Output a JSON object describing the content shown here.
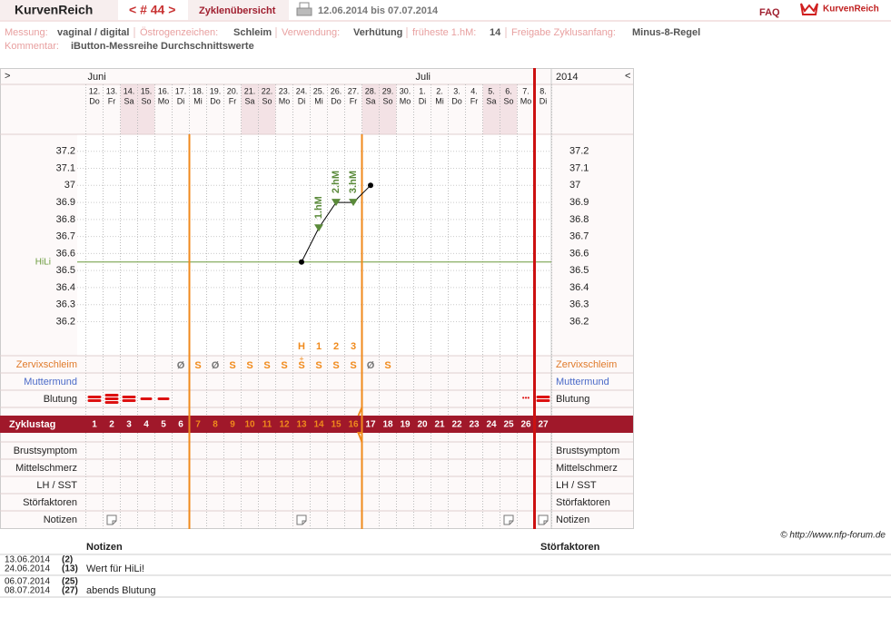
{
  "header": {
    "brand": "KurvenReich",
    "cycle_nav": "< # 44 >",
    "overview": "Zyklenübersicht",
    "date_range": "12.06.2014 bis 07.07.2014",
    "faq": "FAQ",
    "logo": "KurvenReich"
  },
  "info": {
    "items": [
      {
        "label": "Messung:",
        "value": "vaginal / digital"
      },
      {
        "label": "Östrogenzeichen:",
        "value": "Schleim"
      },
      {
        "label": "Verwendung:",
        "value": "Verhütung"
      },
      {
        "label": "früheste 1.hM:",
        "value": "14"
      },
      {
        "label": "Freigabe Zyklusanfang:",
        "value": "Minus-8-Regel"
      }
    ],
    "comment_label": "Kommentar:",
    "comment": "iButton-Messreihe Durchschnittswerte"
  },
  "chart_data": {
    "type": "line",
    "corner_left": ">",
    "corner_right": "<",
    "year": "2014",
    "months": [
      "Juni",
      null,
      null,
      null,
      null,
      null,
      null,
      null,
      null,
      null,
      null,
      null,
      null,
      null,
      null,
      null,
      null,
      null,
      null,
      "Juli",
      null,
      null,
      null,
      null,
      null,
      null,
      null
    ],
    "categories": [
      "12.",
      "13.",
      "14.",
      "15.",
      "16.",
      "17.",
      "18.",
      "19.",
      "20.",
      "21.",
      "22.",
      "23.",
      "24.",
      "25.",
      "26.",
      "27.",
      "28.",
      "29.",
      "30.",
      "1.",
      "2.",
      "3.",
      "4.",
      "5.",
      "6.",
      "7.",
      "8."
    ],
    "weekdays": [
      "Do",
      "Fr",
      "Sa",
      "So",
      "Mo",
      "Di",
      "Mi",
      "Do",
      "Fr",
      "Sa",
      "So",
      "Mo",
      "Di",
      "Mi",
      "Do",
      "Fr",
      "Sa",
      "So",
      "Mo",
      "Di",
      "Mi",
      "Do",
      "Fr",
      "Sa",
      "So",
      "Mo",
      "Di"
    ],
    "shaded": [
      false,
      false,
      true,
      true,
      false,
      false,
      false,
      false,
      false,
      true,
      true,
      false,
      false,
      false,
      false,
      false,
      true,
      true,
      false,
      false,
      false,
      false,
      false,
      true,
      true,
      false,
      false
    ],
    "ylim": [
      36.0,
      37.3
    ],
    "yticks": [
      36.2,
      36.3,
      36.4,
      36.5,
      36.6,
      36.7,
      36.8,
      36.9,
      37,
      37.1,
      37.2
    ],
    "grid": true,
    "series": [
      {
        "color": "#000000",
        "values": [
          null,
          null,
          null,
          null,
          null,
          null,
          null,
          null,
          null,
          null,
          null,
          null,
          36.55,
          36.75,
          36.9,
          36.9,
          37.0,
          null,
          null,
          null,
          null,
          null,
          null,
          null,
          null,
          null,
          null
        ]
      }
    ],
    "hm_labels": [
      null,
      null,
      null,
      null,
      null,
      null,
      null,
      null,
      null,
      null,
      null,
      null,
      null,
      "1.hM",
      "2.hM",
      "3.hM",
      null,
      null,
      null,
      null,
      null,
      null,
      null,
      null,
      null,
      null,
      null
    ],
    "hm_color": "#5a8a3a",
    "hili": {
      "label": "HiLi",
      "value": 36.55,
      "color": "#6a9a3c"
    },
    "peak_labels": [
      null,
      null,
      null,
      null,
      null,
      null,
      null,
      null,
      null,
      null,
      null,
      null,
      "H",
      "1",
      "2",
      "3",
      null,
      null,
      null,
      null,
      null,
      null,
      null,
      null,
      null,
      null,
      null
    ],
    "fertile_color": "#f08a1c",
    "cervix": {
      "label": "Zervixschleim",
      "color": "#e07a2a",
      "values": [
        null,
        null,
        null,
        null,
        null,
        "Ø",
        "S",
        "Ø",
        "S",
        "S",
        "S",
        "S",
        "S",
        "S",
        "S",
        "S",
        "Ø",
        "S",
        null,
        null,
        null,
        null,
        null,
        null,
        null,
        null,
        null
      ],
      "marks": [
        null,
        null,
        null,
        null,
        null,
        null,
        null,
        null,
        null,
        null,
        null,
        null,
        "+",
        null,
        null,
        null,
        null,
        null,
        null,
        null,
        null,
        null,
        null,
        null,
        null,
        null,
        null
      ],
      "colors": [
        null,
        null,
        null,
        null,
        null,
        "#777777",
        "#f08a1c",
        "#777777",
        "#f08a1c",
        "#f08a1c",
        "#f08a1c",
        "#f08a1c",
        "#f08a1c",
        "#f08a1c",
        "#f08a1c",
        "#f08a1c",
        "#777777",
        "#f08a1c",
        null,
        null,
        null,
        null,
        null,
        null,
        null,
        null,
        null
      ]
    },
    "cervix_os": {
      "label": "Muttermund",
      "color": "#4a6ac8"
    },
    "bleeding": {
      "label": "Blutung",
      "color": "#dd1111",
      "values": [
        2,
        3,
        2,
        1,
        1,
        null,
        null,
        null,
        null,
        null,
        null,
        null,
        null,
        null,
        null,
        null,
        null,
        null,
        null,
        null,
        null,
        null,
        null,
        null,
        null,
        "•••",
        2
      ]
    },
    "cycle_label": "Zyklustag",
    "cycle_days": [
      1,
      2,
      3,
      4,
      5,
      6,
      7,
      8,
      9,
      10,
      11,
      12,
      13,
      14,
      15,
      16,
      17,
      18,
      19,
      20,
      21,
      22,
      23,
      24,
      25,
      26,
      27
    ],
    "fertile_days": [
      false,
      false,
      false,
      false,
      false,
      false,
      true,
      true,
      true,
      true,
      true,
      true,
      true,
      true,
      true,
      true,
      false,
      false,
      false,
      false,
      false,
      false,
      false,
      false,
      false,
      false,
      false
    ],
    "lower_rows": [
      "Brustsymptom",
      "Mittelschmerz",
      "LH / SST",
      "Störfaktoren",
      "Notizen"
    ],
    "notes": [
      false,
      true,
      false,
      false,
      false,
      false,
      false,
      false,
      false,
      false,
      false,
      false,
      true,
      false,
      false,
      false,
      false,
      false,
      false,
      false,
      false,
      false,
      false,
      false,
      true,
      false,
      true
    ]
  },
  "copyright": "© http://www.nfp-forum.de",
  "notes_table": {
    "headers": [
      "Notizen",
      "Störfaktoren"
    ],
    "rows": [
      {
        "date": "13.06.2014",
        "day": "(2)"
      },
      {
        "date": "24.06.2014",
        "day": "(13)",
        "note": "Wert für HiLi!"
      },
      {
        "date": "06.07.2014",
        "day": "(25)"
      },
      {
        "date": "08.07.2014",
        "day": "(27)",
        "note": "abends Blutung"
      }
    ]
  }
}
